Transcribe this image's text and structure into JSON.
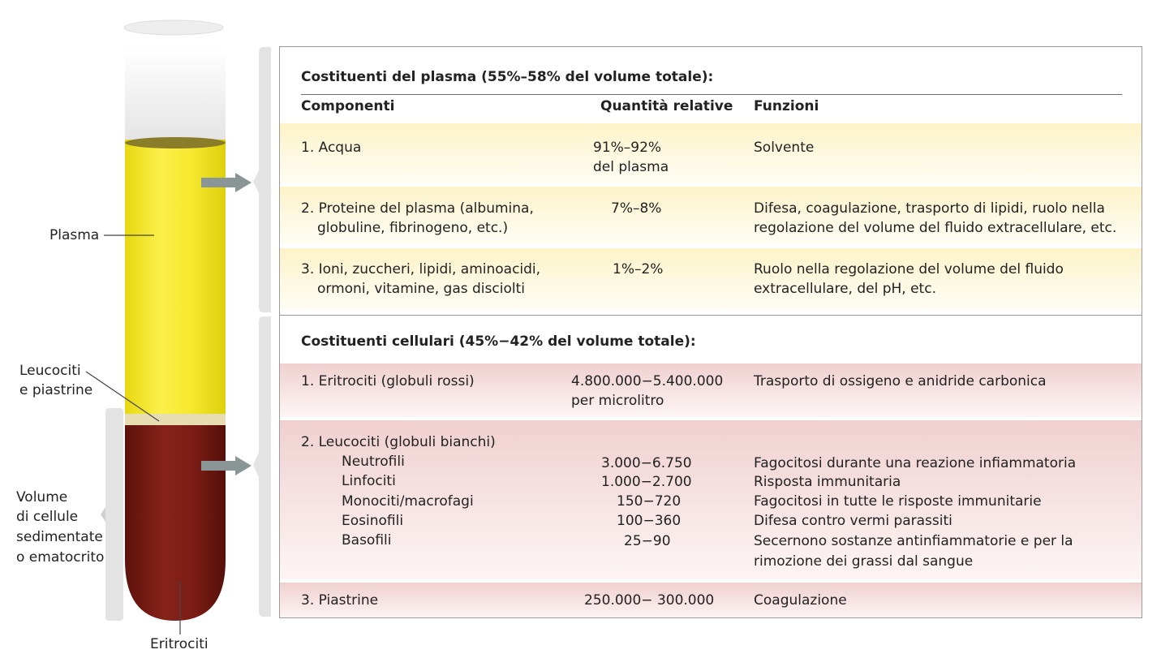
{
  "tube_labels": {
    "plasma": "Plasma",
    "leucociti_line1": "Leucociti",
    "leucociti_line2": "e piastrine",
    "volume_line1": "Volume",
    "volume_line2": "di cellule",
    "volume_line3": "sedimentate",
    "volume_line4": "o ematocrito",
    "eritrociti": "Eritrociti"
  },
  "plasma_section": {
    "title": "Costituenti del plasma (55%–58% del volume totale):",
    "headers": {
      "componenti": "Componenti",
      "quantita": "Quantità relative",
      "funzioni": "Funzioni"
    },
    "rows": [
      {
        "comp1": "1. Acqua",
        "comp2": "",
        "q1": "91%–92%",
        "q2": "del plasma",
        "f1": "Solvente",
        "f2": ""
      },
      {
        "comp1": "2. Proteine del plasma (albumina,",
        "comp2": "globuline, fibrinogeno, etc.)",
        "q1": "7%–8%",
        "q2": "",
        "f1": "Difesa, coagulazione, trasporto di lipidi, ruolo nella",
        "f2": "regolazione del volume del fluido extracellulare, etc."
      },
      {
        "comp1": "3. Ioni, zuccheri, lipidi, aminoacidi,",
        "comp2": "ormoni, vitamine, gas disciolti",
        "q1": "1%–2%",
        "q2": "",
        "f1": "Ruolo nella regolazione del volume del fluido",
        "f2": "extracellulare, del pH, etc."
      }
    ]
  },
  "cell_section": {
    "title": "Costituenti cellulari (45%−42% del volume totale):",
    "eritrociti": {
      "comp": "1. Eritrociti (globuli rossi)",
      "q1": "4.800.000−5.400.000",
      "q2": "per microlitro",
      "f": "Trasporto di ossigeno e anidride carbonica"
    },
    "leucociti": {
      "comp": "2. Leucociti (globuli bianchi)",
      "items": [
        {
          "name": "Neutrofili",
          "q": "3.000−6.750",
          "f": "Fagocitosi durante una reazione infiammatoria"
        },
        {
          "name": "Linfociti",
          "q": "1.000−2.700",
          "f": "Risposta immunitaria"
        },
        {
          "name": "Monociti/macrofagi",
          "q": "150−720",
          "f": "Fagocitosi in tutte le risposte immunitarie"
        },
        {
          "name": "Eosinofili",
          "q": "100−360",
          "f": "Difesa contro vermi parassiti"
        },
        {
          "name": "Basofili",
          "q": "25−90",
          "f": "Secernono sostanze antinfiammatorie e per la"
        }
      ],
      "basofili_f2": "rimozione dei grassi dal sangue"
    },
    "piastrine": {
      "comp": "3. Piastrine",
      "q": "250.000− 300.000",
      "f": "Coagulazione"
    }
  },
  "colors": {
    "plasma": "#f3e21c",
    "red_cells": "#7a1c15",
    "yellow_band": "#fdf3c8",
    "pink_band": "#f0d0d0"
  }
}
